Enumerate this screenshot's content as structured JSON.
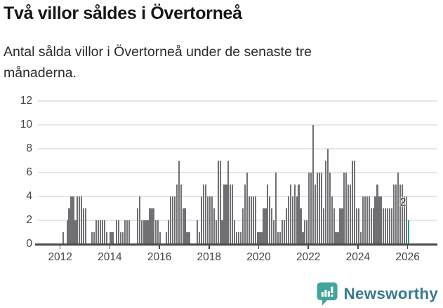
{
  "header": {
    "title": "Två villor såldes i Övertorneå",
    "subtitle": "Antal sålda villor i Övertorneå under de senaste tre månaderna."
  },
  "chart_data": {
    "type": "bar",
    "description": "Monthly bars: number of villas sold in Övertorneå per rolling three-month period",
    "start_month": "2012-01",
    "end_month": "2026-01",
    "ylim": [
      0,
      12
    ],
    "y_ticks": [
      0,
      2,
      4,
      6,
      8,
      10,
      12
    ],
    "x_tick_years": [
      2012,
      2014,
      2016,
      2018,
      2020,
      2022,
      2024,
      2026
    ],
    "grid": "horizontal",
    "values_by_year": {
      "2012": [
        0,
        1,
        0,
        2,
        3,
        4,
        4,
        2,
        4,
        4,
        4,
        3
      ],
      "2013": [
        3,
        0,
        0,
        1,
        1,
        2,
        2,
        2,
        2,
        2,
        1,
        0
      ],
      "2014": [
        1,
        1,
        0,
        2,
        2,
        1,
        1,
        2,
        2,
        2,
        0,
        0
      ],
      "2015": [
        0,
        3,
        4,
        2,
        2,
        2,
        2,
        3,
        3,
        3,
        2,
        2
      ],
      "2016": [
        1,
        0,
        0,
        1,
        2,
        4,
        4,
        4,
        5,
        7,
        5,
        3
      ],
      "2017": [
        3,
        1,
        1,
        0,
        0,
        0,
        2,
        1,
        4,
        5,
        5,
        4
      ],
      "2018": [
        4,
        4,
        3,
        2,
        7,
        7,
        2,
        5,
        5,
        7,
        5,
        5
      ],
      "2019": [
        2,
        1,
        1,
        1,
        3,
        5,
        6,
        4,
        4,
        4,
        4,
        1
      ],
      "2020": [
        1,
        1,
        3,
        3,
        5,
        4,
        3,
        2,
        6,
        1,
        1,
        2
      ],
      "2021": [
        2,
        3,
        4,
        5,
        4,
        5,
        4,
        5,
        3,
        1,
        2,
        2
      ],
      "2022": [
        6,
        6,
        10,
        5,
        6,
        6,
        6,
        3,
        7,
        8,
        6,
        4
      ],
      "2023": [
        3,
        1,
        1,
        3,
        3,
        6,
        6,
        5,
        5,
        7,
        7,
        3
      ],
      "2024": [
        3,
        1,
        4,
        4,
        4,
        4,
        3,
        3,
        4,
        5,
        4,
        4
      ],
      "2025": [
        3,
        3,
        3,
        3,
        3,
        5,
        5,
        6,
        5,
        5,
        4,
        4
      ],
      "2026": [
        2
      ]
    },
    "current_value_label": "2",
    "colors": {
      "bar": "#6f6f74",
      "current_bar": "#12a096",
      "grid": "#e6e6e6",
      "axis": "#4a4a4a",
      "tick_label": "#454545"
    }
  },
  "footer": {
    "brand": "Newsworthy",
    "brand_text_color": "#377b8e",
    "logo_icon_color": "#43a49b"
  }
}
